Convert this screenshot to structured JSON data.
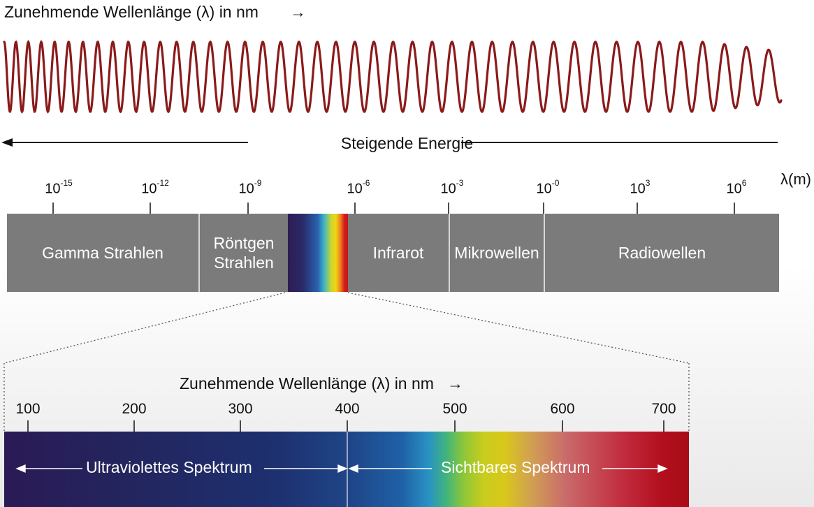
{
  "top_title": "Zunehmende Wellenlänge (λ) in nm",
  "arrow_right": "→",
  "energy_label": "Steigende Energie",
  "lambda_unit": "λ(m)",
  "ticks": [
    {
      "base": "10",
      "exp": "-15"
    },
    {
      "base": "10",
      "exp": "-12"
    },
    {
      "base": "10",
      "exp": "-9"
    },
    {
      "base": "10",
      "exp": "-6"
    },
    {
      "base": "10",
      "exp": "-3"
    },
    {
      "base": "10",
      "exp": "-0"
    },
    {
      "base": "10",
      "exp": "3"
    },
    {
      "base": "10",
      "exp": "6"
    }
  ],
  "bands": {
    "gamma": "Gamma Strahlen",
    "xray_line1": "Röntgen",
    "xray_line2": "Strahlen",
    "infrared": "Infrarot",
    "microwave": "Mikrowellen",
    "radio": "Radiowellen"
  },
  "lower_title": "Zunehmende Wellenlänge (λ) in nm",
  "nm_ticks": [
    "100",
    "200",
    "300",
    "400",
    "500",
    "600",
    "700"
  ],
  "uv_label": "Ultraviolettes Spektrum",
  "visible_label": "Sichtbares Spektrum",
  "colors": {
    "wave": "#8b1a1a",
    "band": "#7b7b7b"
  }
}
